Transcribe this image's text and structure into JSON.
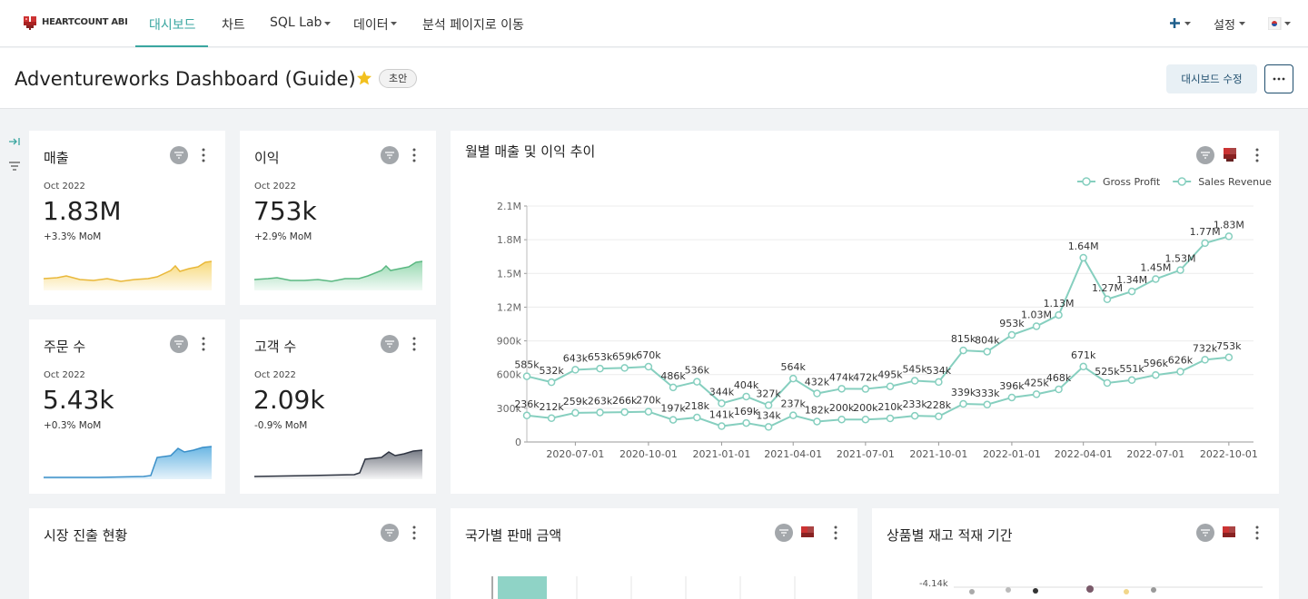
{
  "nav": {
    "logo": "HEARTCOUNT ABI",
    "tabs": [
      "대시보드",
      "차트",
      "SQL Lab",
      "데이터",
      "분석 페이지로 이동"
    ],
    "settings": "설정"
  },
  "header": {
    "title": "Adventureworks Dashboard (Guide)",
    "badge": "초안",
    "edit_button": "대시보드 수정"
  },
  "kpis": [
    {
      "title": "매출",
      "period": "Oct 2022",
      "value": "1.83M",
      "change": "+3.3% MoM"
    },
    {
      "title": "이익",
      "period": "Oct 2022",
      "value": "753k",
      "change": "+2.9% MoM"
    },
    {
      "title": "주문 수",
      "period": "Oct 2022",
      "value": "5.43k",
      "change": "+0.3% MoM"
    },
    {
      "title": "고객 수",
      "period": "Oct 2022",
      "value": "2.09k",
      "change": "-0.9% MoM"
    }
  ],
  "chart_data": {
    "type": "line",
    "title": "월별 매출 및 이익 추이",
    "x": [
      "2020-05-01",
      "2020-06-01",
      "2020-07-01",
      "2020-08-01",
      "2020-09-01",
      "2020-10-01",
      "2020-11-01",
      "2020-12-01",
      "2021-01-01",
      "2021-02-01",
      "2021-03-01",
      "2021-04-01",
      "2021-05-01",
      "2021-06-01",
      "2021-07-01",
      "2021-08-01",
      "2021-09-01",
      "2021-10-01",
      "2021-11-01",
      "2021-12-01",
      "2022-01-01",
      "2022-02-01",
      "2022-03-01",
      "2022-04-01",
      "2022-05-01",
      "2022-06-01",
      "2022-07-01",
      "2022-08-01",
      "2022-09-01",
      "2022-10-01"
    ],
    "xlim": [
      "2020-05-01",
      "2022-11-01"
    ],
    "xticks": [
      "2020-07-01",
      "2020-10-01",
      "2021-01-01",
      "2021-04-01",
      "2021-07-01",
      "2021-10-01",
      "2022-01-01",
      "2022-04-01",
      "2022-07-01",
      "2022-10-01"
    ],
    "ylim": [
      0,
      2100000
    ],
    "yticks": [
      0,
      {
        "value": 300000,
        "label": "300k"
      },
      {
        "value": 600000,
        "label": "600k"
      },
      {
        "value": 900000,
        "label": "900k"
      },
      {
        "value": 1200000,
        "label": "1.2M"
      },
      {
        "value": 1500000,
        "label": "1.5M"
      },
      {
        "value": 1800000,
        "label": "1.8M"
      },
      {
        "value": 2100000,
        "label": "2.1M"
      }
    ],
    "grid": true,
    "legend": "top-right",
    "series": [
      {
        "name": "Gross Profit",
        "color": "#86cfbf",
        "values": [
          236000,
          212000,
          259000,
          263000,
          266000,
          270000,
          197000,
          218000,
          141000,
          169000,
          134000,
          237000,
          182000,
          200000,
          200000,
          210000,
          233000,
          228000,
          339000,
          333000,
          396000,
          425000,
          468000,
          671000,
          525000,
          551000,
          596000,
          626000,
          732000,
          753000
        ],
        "value_labels": [
          "236k",
          "212k",
          "259k",
          "263k",
          "266k",
          "270k",
          "197k",
          "218k",
          "141k",
          "169k",
          "134k",
          "237k",
          "182k",
          "200k",
          "200k",
          "210k",
          "233k",
          "228k",
          "339k",
          "333k",
          "396k",
          "425k",
          "468k",
          "671k",
          "525k",
          "551k",
          "596k",
          "626k",
          "732k",
          "753k"
        ]
      },
      {
        "name": "Sales Revenue",
        "color": "#86cfbf",
        "values": [
          585000,
          532000,
          643000,
          653000,
          659000,
          670000,
          486000,
          536000,
          344000,
          404000,
          327000,
          564000,
          432000,
          474000,
          472000,
          495000,
          545000,
          534000,
          815000,
          804000,
          953000,
          1030000,
          1130000,
          1640000,
          1270000,
          1340000,
          1450000,
          1530000,
          1770000,
          1830000
        ],
        "value_labels": [
          "585k",
          "532k",
          "643k",
          "653k",
          "659k",
          "670k",
          "486k",
          "536k",
          "344k",
          "404k",
          "327k",
          "564k",
          "432k",
          "474k",
          "472k",
          "495k",
          "545k",
          "534k",
          "815k",
          "804k",
          "953k",
          "1.03M",
          "1.13M",
          "1.64M",
          "1.27M",
          "1.34M",
          "1.45M",
          "1.53M",
          "1.77M",
          "1.83M"
        ]
      }
    ]
  },
  "bottom_cards": [
    {
      "title": "시장 진출 현황"
    },
    {
      "title": "국가별 판매 금액"
    },
    {
      "title": "상품별 재고 적재 기간",
      "axis_label": "-4.14k"
    }
  ]
}
